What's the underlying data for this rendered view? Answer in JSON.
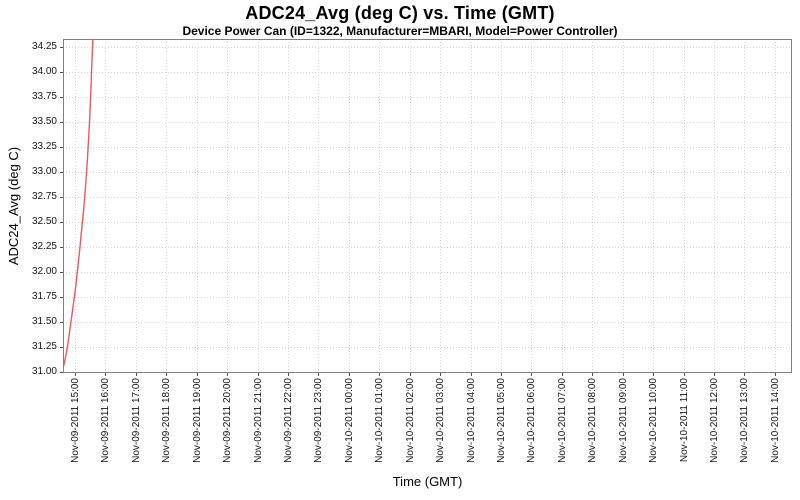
{
  "colors": {
    "series": "#e85a5e",
    "grid": "#d4d4d4",
    "plot_border": "#808080",
    "tick_mark": "#4d4d4d",
    "text": "#000000",
    "background": "#ffffff"
  },
  "chart_data": {
    "type": "line",
    "title": "ADC24_Avg (deg C) vs. Time (GMT)",
    "subtitle": "Device Power Can (ID=1322, Manufacturer=MBARI, Model=Power Controller)",
    "xlabel": "Time (GMT)",
    "ylabel": "ADC24_Avg (deg C)",
    "grid": true,
    "legend_visible": false,
    "x_unit": "hours since Nov-09-2011 00:00 GMT",
    "xlim": [
      14.606,
      38.565
    ],
    "ylim": [
      30.99,
      34.33
    ],
    "y_ticks": [
      31.0,
      31.25,
      31.5,
      31.75,
      32.0,
      32.25,
      32.5,
      32.75,
      33.0,
      33.25,
      33.5,
      33.75,
      34.0,
      34.25
    ],
    "x_tick_start": 15,
    "x_tick_step": 1,
    "x_tick_labels": [
      "Nov-09-2011 15:00",
      "Nov-09-2011 16:00",
      "Nov-09-2011 17:00",
      "Nov-09-2011 18:00",
      "Nov-09-2011 19:00",
      "Nov-09-2011 20:00",
      "Nov-09-2011 21:00",
      "Nov-09-2011 22:00",
      "Nov-09-2011 23:00",
      "Nov-10-2011 00:00",
      "Nov-10-2011 01:00",
      "Nov-10-2011 02:00",
      "Nov-10-2011 03:00",
      "Nov-10-2011 04:00",
      "Nov-10-2011 05:00",
      "Nov-10-2011 06:00",
      "Nov-10-2011 07:00",
      "Nov-10-2011 08:00",
      "Nov-10-2011 09:00",
      "Nov-10-2011 10:00",
      "Nov-10-2011 11:00",
      "Nov-10-2011 12:00",
      "Nov-10-2011 13:00",
      "Nov-10-2011 14:00"
    ],
    "series": [
      {
        "name": "ADC24_Avg",
        "color": "#e85a5e",
        "points": [
          [
            14.54,
            30.98
          ],
          [
            14.63,
            31.06
          ],
          [
            14.71,
            31.18
          ],
          [
            14.78,
            31.31
          ],
          [
            14.84,
            31.44
          ],
          [
            14.9,
            31.57
          ],
          [
            14.97,
            31.73
          ],
          [
            15.03,
            31.87
          ],
          [
            15.1,
            32.06
          ],
          [
            15.16,
            32.24
          ],
          [
            15.23,
            32.46
          ],
          [
            15.3,
            32.67
          ],
          [
            15.36,
            32.9
          ],
          [
            15.41,
            33.14
          ],
          [
            15.46,
            33.4
          ],
          [
            15.5,
            33.64
          ],
          [
            15.53,
            33.88
          ],
          [
            15.56,
            34.12
          ],
          [
            15.6,
            34.4
          ]
        ]
      }
    ]
  }
}
